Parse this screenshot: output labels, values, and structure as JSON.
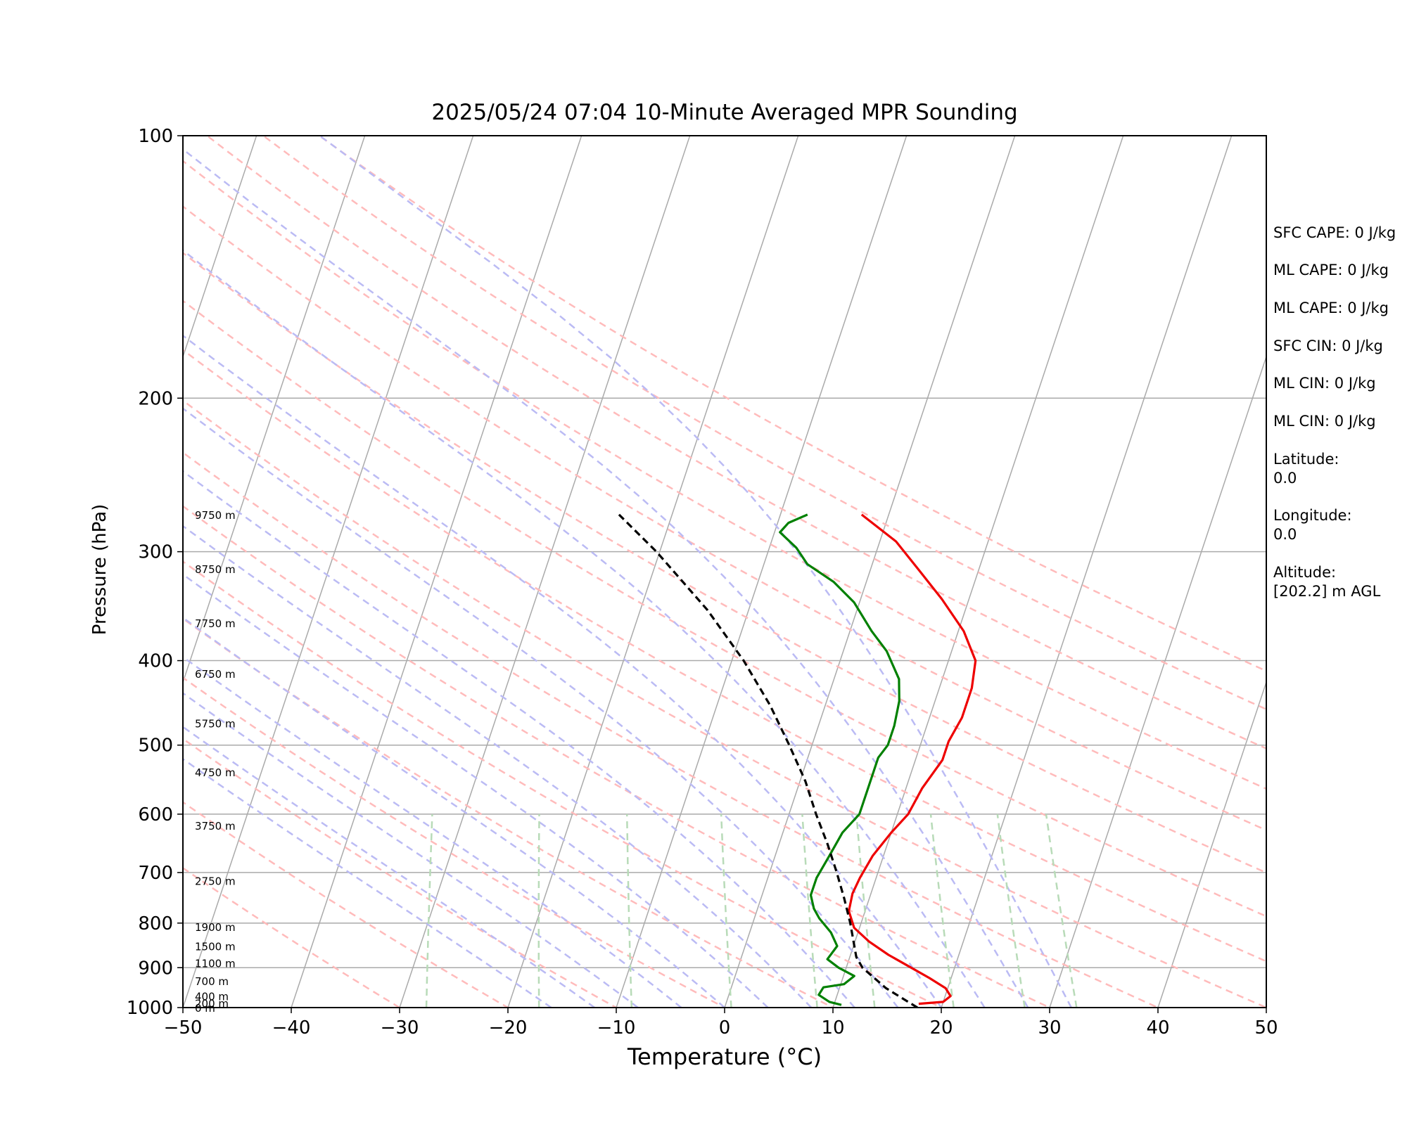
{
  "chart_data": {
    "type": "skew-t",
    "title": "2025/05/24 07:04 10-Minute Averaged MPR Sounding",
    "xlabel": "Temperature (°C)",
    "ylabel": "Pressure (hPa)",
    "xlim": [
      -50,
      50
    ],
    "ylim": [
      1000,
      100
    ],
    "y_scale": "log",
    "x_ticks": [
      "−50",
      "−40",
      "−30",
      "−20",
      "−10",
      "0",
      "10",
      "20",
      "30",
      "40",
      "50"
    ],
    "y_ticks": [
      {
        "p": 100,
        "label": "100"
      },
      {
        "p": 200,
        "label": "200"
      },
      {
        "p": 300,
        "label": "300"
      },
      {
        "p": 400,
        "label": "400"
      },
      {
        "p": 500,
        "label": "500"
      },
      {
        "p": 600,
        "label": "600"
      },
      {
        "p": 700,
        "label": "700"
      },
      {
        "p": 800,
        "label": "800"
      },
      {
        "p": 900,
        "label": "900"
      },
      {
        "p": 1000,
        "label": "1000"
      }
    ],
    "height_labels": [
      {
        "p": 272,
        "label": "9750 m"
      },
      {
        "p": 314,
        "label": "8750 m"
      },
      {
        "p": 362,
        "label": "7750 m"
      },
      {
        "p": 414,
        "label": "6750 m"
      },
      {
        "p": 472,
        "label": "5750 m"
      },
      {
        "p": 537,
        "label": "4750 m"
      },
      {
        "p": 618,
        "label": "3750 m"
      },
      {
        "p": 715,
        "label": "2750 m"
      },
      {
        "p": 808,
        "label": "1900 m"
      },
      {
        "p": 850,
        "label": "1500 m"
      },
      {
        "p": 889,
        "label": "1100 m"
      },
      {
        "p": 932,
        "label": "700 m"
      },
      {
        "p": 970,
        "label": "400 m"
      },
      {
        "p": 988,
        "label": "200 m"
      },
      {
        "p": 1000,
        "label": "0 m"
      }
    ],
    "series": [
      {
        "kind": "temperature",
        "color": "#ee0000",
        "points": [
          [
            17.8,
            990
          ],
          [
            20,
            985
          ],
          [
            20.5,
            970
          ],
          [
            19.8,
            950
          ],
          [
            18,
            925
          ],
          [
            16,
            900
          ],
          [
            13.5,
            870
          ],
          [
            11.3,
            840
          ],
          [
            9.5,
            810
          ],
          [
            8.5,
            775
          ],
          [
            8.3,
            740
          ],
          [
            8.5,
            710
          ],
          [
            9,
            670
          ],
          [
            10,
            630
          ],
          [
            11,
            600
          ],
          [
            11.5,
            560
          ],
          [
            12.5,
            520
          ],
          [
            12.5,
            495
          ],
          [
            13,
            465
          ],
          [
            13,
            430
          ],
          [
            12.5,
            400
          ],
          [
            10.5,
            370
          ],
          [
            7.5,
            340
          ],
          [
            4.5,
            315
          ],
          [
            1.5,
            292
          ],
          [
            -2.5,
            272
          ]
        ]
      },
      {
        "kind": "dewpoint",
        "color": "#008000",
        "points": [
          [
            10.7,
            993
          ],
          [
            9.5,
            985
          ],
          [
            8.3,
            967
          ],
          [
            8.5,
            948
          ],
          [
            10.3,
            940
          ],
          [
            11,
            920
          ],
          [
            9.3,
            900
          ],
          [
            8,
            880
          ],
          [
            8.5,
            850
          ],
          [
            7.5,
            820
          ],
          [
            6,
            790
          ],
          [
            5.2,
            770
          ],
          [
            4.5,
            743
          ],
          [
            4.5,
            710
          ],
          [
            5,
            670
          ],
          [
            5.5,
            630
          ],
          [
            6.5,
            600
          ],
          [
            6.5,
            560
          ],
          [
            6.5,
            517
          ],
          [
            7,
            500
          ],
          [
            7,
            475
          ],
          [
            6.7,
            445
          ],
          [
            6,
            420
          ],
          [
            4,
            390
          ],
          [
            2,
            370
          ],
          [
            -0.5,
            343
          ],
          [
            -3,
            325
          ],
          [
            -6,
            310
          ],
          [
            -7.5,
            297
          ],
          [
            -9.5,
            285
          ],
          [
            -9,
            278
          ],
          [
            -7.5,
            272
          ]
        ]
      },
      {
        "kind": "parcel",
        "color": "#000000",
        "points": [
          [
            17.8,
            1000
          ],
          [
            14.3,
            950
          ],
          [
            11.5,
            900
          ],
          [
            10.6,
            875
          ],
          [
            9,
            800
          ],
          [
            7.7,
            750
          ],
          [
            6.2,
            700
          ],
          [
            4.5,
            650
          ],
          [
            2.5,
            600
          ],
          [
            0.5,
            550
          ],
          [
            -2.1,
            500
          ],
          [
            -5.1,
            450
          ],
          [
            -8.9,
            400
          ],
          [
            -13.8,
            350
          ],
          [
            -20.3,
            300
          ],
          [
            -24.9,
            272
          ]
        ]
      }
    ],
    "dry_adiabats": [
      -30,
      -20,
      -10,
      0,
      10,
      20,
      30,
      40,
      50,
      60,
      70,
      80,
      90,
      100,
      110,
      120,
      130
    ],
    "moist_adiabats": [
      -16,
      -12,
      -8,
      -4,
      0,
      4,
      8,
      12,
      16,
      20,
      24,
      28,
      32
    ],
    "mixing_ratios": [
      0.4,
      1,
      2,
      4,
      7,
      10,
      16,
      24,
      32
    ],
    "isotherms": [
      -150,
      -140,
      -130,
      -120,
      -110,
      -100,
      -90,
      -80,
      -70,
      -60,
      -50,
      -40,
      -30,
      -20,
      -10,
      0,
      10,
      20,
      30,
      40,
      50
    ],
    "colors": {
      "isotherm": "#aaaaaa",
      "dry_adiabat": "#ffbbbb",
      "moist_adiabat": "#bbbbf4",
      "mixing_ratio": "#b8dbb8",
      "grid": "#aaaaaa"
    }
  },
  "sidebar": [
    {
      "text": "SFC CAPE: 0 J/kg"
    },
    {
      "text": "ML CAPE: 0 J/kg"
    },
    {
      "text": "ML CAPE: 0 J/kg"
    },
    {
      "text": "SFC CIN: 0 J/kg"
    },
    {
      "text": "ML CIN: 0 J/kg"
    },
    {
      "text": "ML CIN: 0 J/kg"
    },
    {
      "text": "Latitude:\n0.0"
    },
    {
      "text": "Longitude:\n0.0"
    },
    {
      "text": "Altitude:\n[202.2] m AGL"
    }
  ]
}
